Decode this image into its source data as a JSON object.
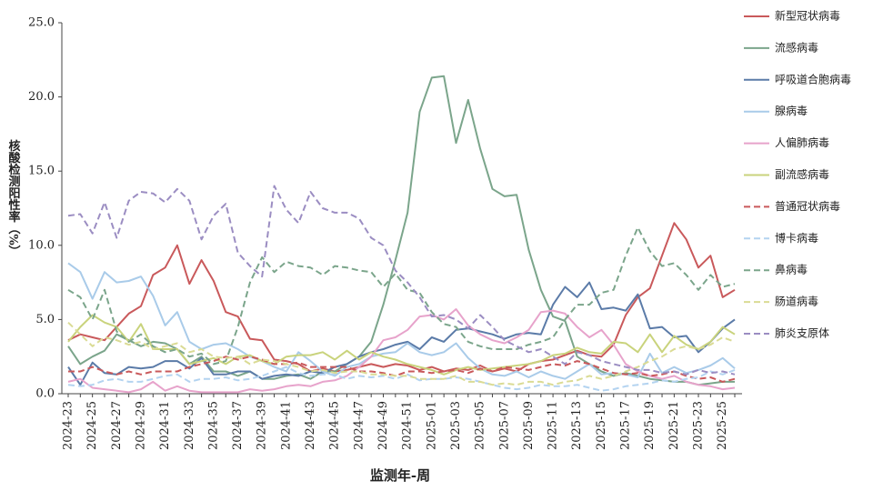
{
  "chart_data": {
    "type": "line",
    "y_label": "核酸检测阳性率（%）",
    "x_label": "监测年-周",
    "categories": [
      "2024-23",
      null,
      "2024-25",
      null,
      "2024-27",
      null,
      "2024-29",
      null,
      "2024-31",
      null,
      "2024-33",
      null,
      "2024-35",
      null,
      "2024-37",
      null,
      "2024-39",
      null,
      "2024-41",
      null,
      "2024-43",
      null,
      "2024-45",
      null,
      "2024-47",
      null,
      "2024-49",
      null,
      "2024-51",
      null,
      "2025-01",
      null,
      "2025-03",
      null,
      "2025-05",
      null,
      "2025-07",
      null,
      "2025-09",
      null,
      "2025-11",
      null,
      "2025-13",
      null,
      "2025-15",
      null,
      "2025-17",
      null,
      "2025-19",
      null,
      "2025-21",
      null,
      "2025-23",
      null,
      "2025-25",
      null
    ],
    "ylim": [
      0,
      25
    ],
    "yticks": [
      {
        "value": 0,
        "label": "0.0"
      },
      {
        "value": 5,
        "label": "5.0"
      },
      {
        "value": 10,
        "label": "10.0"
      },
      {
        "value": 15,
        "label": "15.0"
      },
      {
        "value": 20,
        "label": "20.0"
      },
      {
        "value": 25,
        "label": "25.0"
      }
    ],
    "series": [
      {
        "name": "新型冠状病毒",
        "color": "#c9595b",
        "dashed": false,
        "values": [
          3.6,
          4.0,
          3.8,
          3.6,
          4.5,
          5.4,
          5.9,
          8.0,
          8.5,
          10.0,
          7.4,
          9.0,
          7.6,
          5.5,
          5.2,
          3.7,
          3.6,
          2.3,
          2.2,
          2.0,
          1.5,
          1.7,
          1.5,
          1.6,
          1.8,
          2.0,
          1.8,
          2.0,
          1.9,
          1.6,
          1.8,
          1.5,
          1.7,
          1.6,
          1.9,
          1.5,
          1.7,
          1.5,
          2.0,
          2.2,
          2.3,
          2.6,
          2.9,
          2.6,
          2.5,
          3.3,
          5.3,
          6.5,
          7.1,
          9.3,
          11.5,
          10.4,
          8.5,
          9.3,
          6.5,
          7.0
        ]
      },
      {
        "name": "流感病毒",
        "color": "#7ba58b",
        "dashed": false,
        "values": [
          3.2,
          2.0,
          2.5,
          2.9,
          4.0,
          3.6,
          3.2,
          3.5,
          3.4,
          3.0,
          2.0,
          2.5,
          1.5,
          1.5,
          1.2,
          1.5,
          1.0,
          1.0,
          1.2,
          1.3,
          1.0,
          1.5,
          1.5,
          2.0,
          2.5,
          3.5,
          6.0,
          9.0,
          12.2,
          19.0,
          21.3,
          21.4,
          16.9,
          19.8,
          16.5,
          13.8,
          13.3,
          13.4,
          9.7,
          7.0,
          5.2,
          4.9,
          2.5,
          2.0,
          1.5,
          1.2,
          1.4,
          1.2,
          1.0,
          0.9,
          0.8,
          0.8,
          0.6,
          0.7,
          0.8,
          0.8
        ]
      },
      {
        "name": "呼吸道合胞病毒",
        "color": "#5b7ba8",
        "dashed": false,
        "values": [
          1.8,
          0.6,
          2.1,
          1.4,
          1.3,
          1.8,
          1.7,
          1.8,
          2.2,
          2.2,
          1.7,
          2.4,
          1.3,
          1.3,
          1.5,
          1.5,
          1.0,
          1.2,
          1.3,
          1.2,
          1.5,
          1.4,
          1.8,
          2.0,
          2.5,
          2.8,
          3.0,
          3.3,
          3.5,
          3.0,
          3.8,
          3.5,
          4.3,
          4.4,
          4.2,
          4.0,
          3.7,
          4.0,
          4.1,
          4.0,
          6.0,
          7.2,
          6.5,
          7.5,
          5.7,
          5.8,
          5.6,
          6.7,
          4.4,
          4.5,
          3.8,
          3.9,
          2.8,
          3.5,
          4.4,
          5.0
        ]
      },
      {
        "name": "腺病毒",
        "color": "#a9cbe9",
        "dashed": false,
        "values": [
          8.8,
          8.2,
          6.4,
          8.2,
          7.5,
          7.6,
          7.9,
          6.6,
          4.6,
          5.5,
          3.5,
          3.0,
          3.3,
          3.4,
          3.0,
          2.5,
          2.2,
          1.8,
          1.5,
          2.8,
          2.2,
          1.5,
          1.2,
          1.8,
          2.0,
          2.5,
          2.7,
          2.8,
          3.4,
          2.8,
          2.6,
          2.8,
          3.4,
          2.4,
          1.7,
          1.3,
          1.2,
          1.5,
          1.1,
          1.5,
          1.2,
          1.0,
          1.5,
          2.0,
          1.3,
          1.4,
          1.3,
          1.1,
          2.7,
          1.4,
          1.8,
          1.4,
          1.6,
          1.9,
          2.4,
          1.7
        ]
      },
      {
        "name": "人偏肺病毒",
        "color": "#e7a3cb",
        "dashed": false,
        "values": [
          0.8,
          1.0,
          0.4,
          0.3,
          0.2,
          0.1,
          0.3,
          0.8,
          0.2,
          0.5,
          0.2,
          0.1,
          0.1,
          0.1,
          0.1,
          0.3,
          0.2,
          0.3,
          0.5,
          0.6,
          0.5,
          0.8,
          0.9,
          1.2,
          1.8,
          2.5,
          3.6,
          3.8,
          4.3,
          5.2,
          5.3,
          5.0,
          5.7,
          4.6,
          4.0,
          3.6,
          3.4,
          3.8,
          4.3,
          5.5,
          5.6,
          5.4,
          4.5,
          3.8,
          4.3,
          3.3,
          2.0,
          1.5,
          1.2,
          1.0,
          1.2,
          0.8,
          0.6,
          0.5,
          0.3,
          0.4
        ]
      },
      {
        "name": "副流感病毒",
        "color": "#c9d37c",
        "dashed": false,
        "values": [
          3.5,
          4.5,
          5.3,
          4.8,
          4.5,
          3.5,
          4.7,
          3.0,
          3.0,
          3.0,
          2.0,
          2.2,
          2.4,
          2.0,
          2.5,
          2.6,
          2.2,
          2.0,
          2.5,
          2.6,
          2.6,
          2.8,
          2.3,
          2.9,
          2.3,
          2.8,
          2.5,
          2.3,
          2.0,
          1.8,
          1.6,
          1.3,
          1.6,
          1.8,
          1.6,
          1.7,
          1.8,
          1.9,
          2.0,
          2.2,
          2.6,
          2.7,
          3.1,
          2.8,
          2.7,
          3.5,
          3.4,
          2.8,
          4.0,
          2.8,
          3.9,
          3.3,
          3.0,
          3.5,
          4.5,
          4.0
        ]
      },
      {
        "name": "普通冠状病毒",
        "color": "#c9595b",
        "dashed": true,
        "values": [
          1.5,
          1.5,
          1.8,
          1.5,
          1.3,
          1.5,
          1.3,
          1.5,
          1.5,
          1.5,
          1.8,
          2.0,
          2.2,
          2.5,
          2.3,
          2.5,
          2.3,
          2.0,
          2.0,
          2.1,
          1.8,
          1.8,
          1.8,
          1.8,
          1.5,
          1.5,
          1.4,
          1.2,
          1.5,
          1.5,
          1.4,
          1.5,
          1.6,
          1.4,
          1.7,
          1.5,
          1.8,
          1.7,
          1.6,
          1.8,
          2.0,
          1.9,
          2.2,
          2.0,
          1.7,
          1.4,
          1.3,
          1.4,
          1.2,
          1.3,
          1.5,
          1.2,
          1.0,
          1.1,
          0.8,
          1.0
        ]
      },
      {
        "name": "博卡病毒",
        "color": "#b3d3f0",
        "dashed": true,
        "values": [
          0.6,
          0.5,
          0.6,
          0.9,
          1.0,
          0.8,
          0.8,
          1.0,
          1.2,
          1.3,
          0.8,
          1.0,
          1.0,
          1.1,
          0.9,
          1.0,
          1.2,
          1.5,
          1.8,
          1.4,
          1.2,
          1.3,
          1.3,
          1.0,
          1.2,
          1.1,
          1.2,
          1.0,
          1.3,
          0.9,
          1.0,
          1.0,
          1.1,
          1.0,
          0.8,
          0.6,
          0.4,
          0.3,
          0.4,
          0.6,
          0.5,
          0.5,
          0.6,
          0.4,
          0.2,
          0.3,
          0.5,
          0.6,
          0.7,
          0.9,
          0.8,
          1.0,
          1.1,
          1.5,
          1.3,
          1.6
        ]
      },
      {
        "name": "鼻病毒",
        "color": "#7ba58b",
        "dashed": true,
        "values": [
          7.0,
          6.5,
          5.0,
          7.0,
          4.2,
          3.5,
          4.0,
          3.2,
          2.8,
          3.0,
          2.5,
          2.7,
          2.0,
          2.2,
          4.5,
          7.5,
          9.2,
          8.2,
          8.9,
          8.6,
          8.5,
          8.0,
          8.6,
          8.5,
          8.3,
          8.2,
          7.2,
          8.1,
          7.0,
          6.8,
          5.5,
          4.7,
          4.5,
          3.5,
          3.2,
          3.0,
          3.0,
          3.0,
          3.3,
          3.5,
          3.8,
          5.0,
          6.0,
          6.0,
          6.8,
          7.0,
          9.3,
          11.2,
          9.6,
          8.6,
          8.8,
          8.0,
          7.0,
          8.0,
          7.2,
          7.4
        ]
      },
      {
        "name": "肠道病毒",
        "color": "#dadb94",
        "dashed": true,
        "values": [
          4.8,
          4.0,
          3.2,
          3.8,
          3.6,
          3.3,
          3.5,
          3.0,
          3.2,
          3.4,
          2.8,
          3.0,
          2.5,
          2.4,
          2.5,
          2.0,
          2.3,
          2.2,
          2.0,
          1.8,
          1.5,
          1.6,
          1.4,
          1.5,
          1.5,
          1.3,
          1.3,
          1.2,
          1.2,
          1.0,
          1.0,
          1.0,
          1.2,
          0.8,
          0.8,
          0.6,
          0.7,
          0.6,
          0.8,
          0.8,
          0.6,
          0.8,
          0.9,
          1.2,
          1.0,
          1.2,
          1.5,
          1.8,
          2.2,
          2.5,
          3.0,
          3.2,
          3.0,
          3.3,
          3.8,
          3.5
        ]
      },
      {
        "name": "肺炎支原体",
        "color": "#9b8dc2",
        "dashed": true,
        "values": [
          12.0,
          12.1,
          10.8,
          12.9,
          10.5,
          13.0,
          13.6,
          13.5,
          12.9,
          13.8,
          13.0,
          10.4,
          12.0,
          12.8,
          9.5,
          8.6,
          7.9,
          14.0,
          12.4,
          11.5,
          13.6,
          12.5,
          12.2,
          12.2,
          11.8,
          10.5,
          10.0,
          8.3,
          7.5,
          6.5,
          5.2,
          5.3,
          5.0,
          4.4,
          5.3,
          4.5,
          3.6,
          3.2,
          2.8,
          3.0,
          2.5,
          2.0,
          2.8,
          2.6,
          2.2,
          2.0,
          1.8,
          1.6,
          1.6,
          1.4,
          1.5,
          1.3,
          1.6,
          1.4,
          1.5,
          1.3
        ]
      }
    ]
  }
}
